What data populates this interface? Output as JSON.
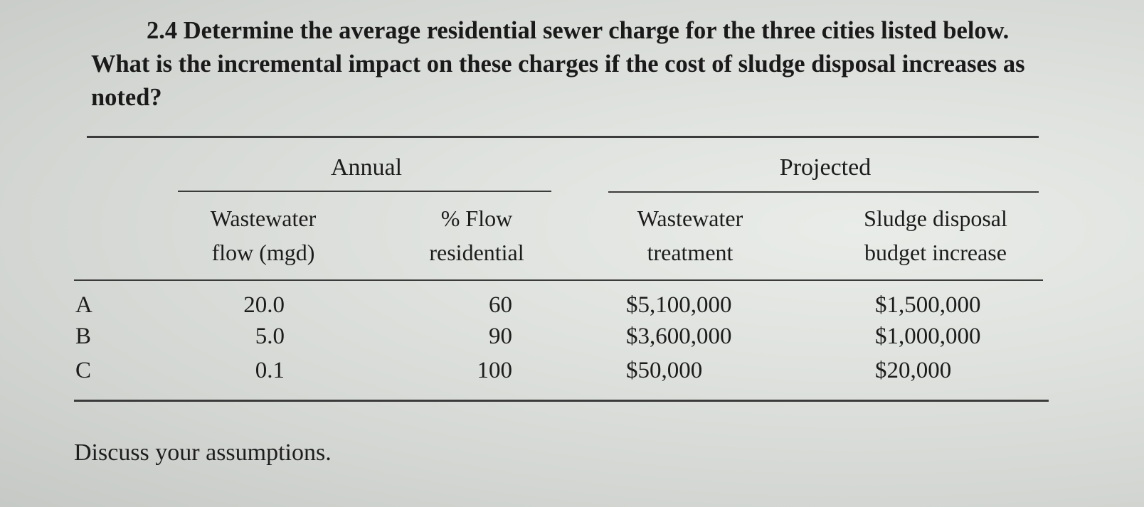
{
  "problem": {
    "number": "2.4",
    "text": "Determine the average residential sewer charge for the three cities listed below. What is the incremental impact on these charges if the cost of sludge disposal increases as noted?"
  },
  "table": {
    "group_labels": {
      "annual": "Annual",
      "projected": "Projected"
    },
    "headers": {
      "flow_line1": "Wastewater",
      "flow_line2": "flow (mgd)",
      "pct_line1": "% Flow",
      "pct_line2": "residential",
      "ww_line1": "Wastewater",
      "ww_line2": "treatment",
      "sludge_line1": "Sludge disposal",
      "sludge_line2": "budget increase"
    },
    "rows": [
      {
        "city": "A",
        "flow": "20.0",
        "pct": "60",
        "treatment": "$5,100,000",
        "sludge": "$1,500,000"
      },
      {
        "city": "B",
        "flow": "5.0",
        "pct": "90",
        "treatment": "$3,600,000",
        "sludge": "$1,000,000"
      },
      {
        "city": "C",
        "flow": "0.1",
        "pct": "100",
        "treatment": "$50,000",
        "sludge": "$20,000"
      }
    ]
  },
  "footer": "Discuss your assumptions."
}
